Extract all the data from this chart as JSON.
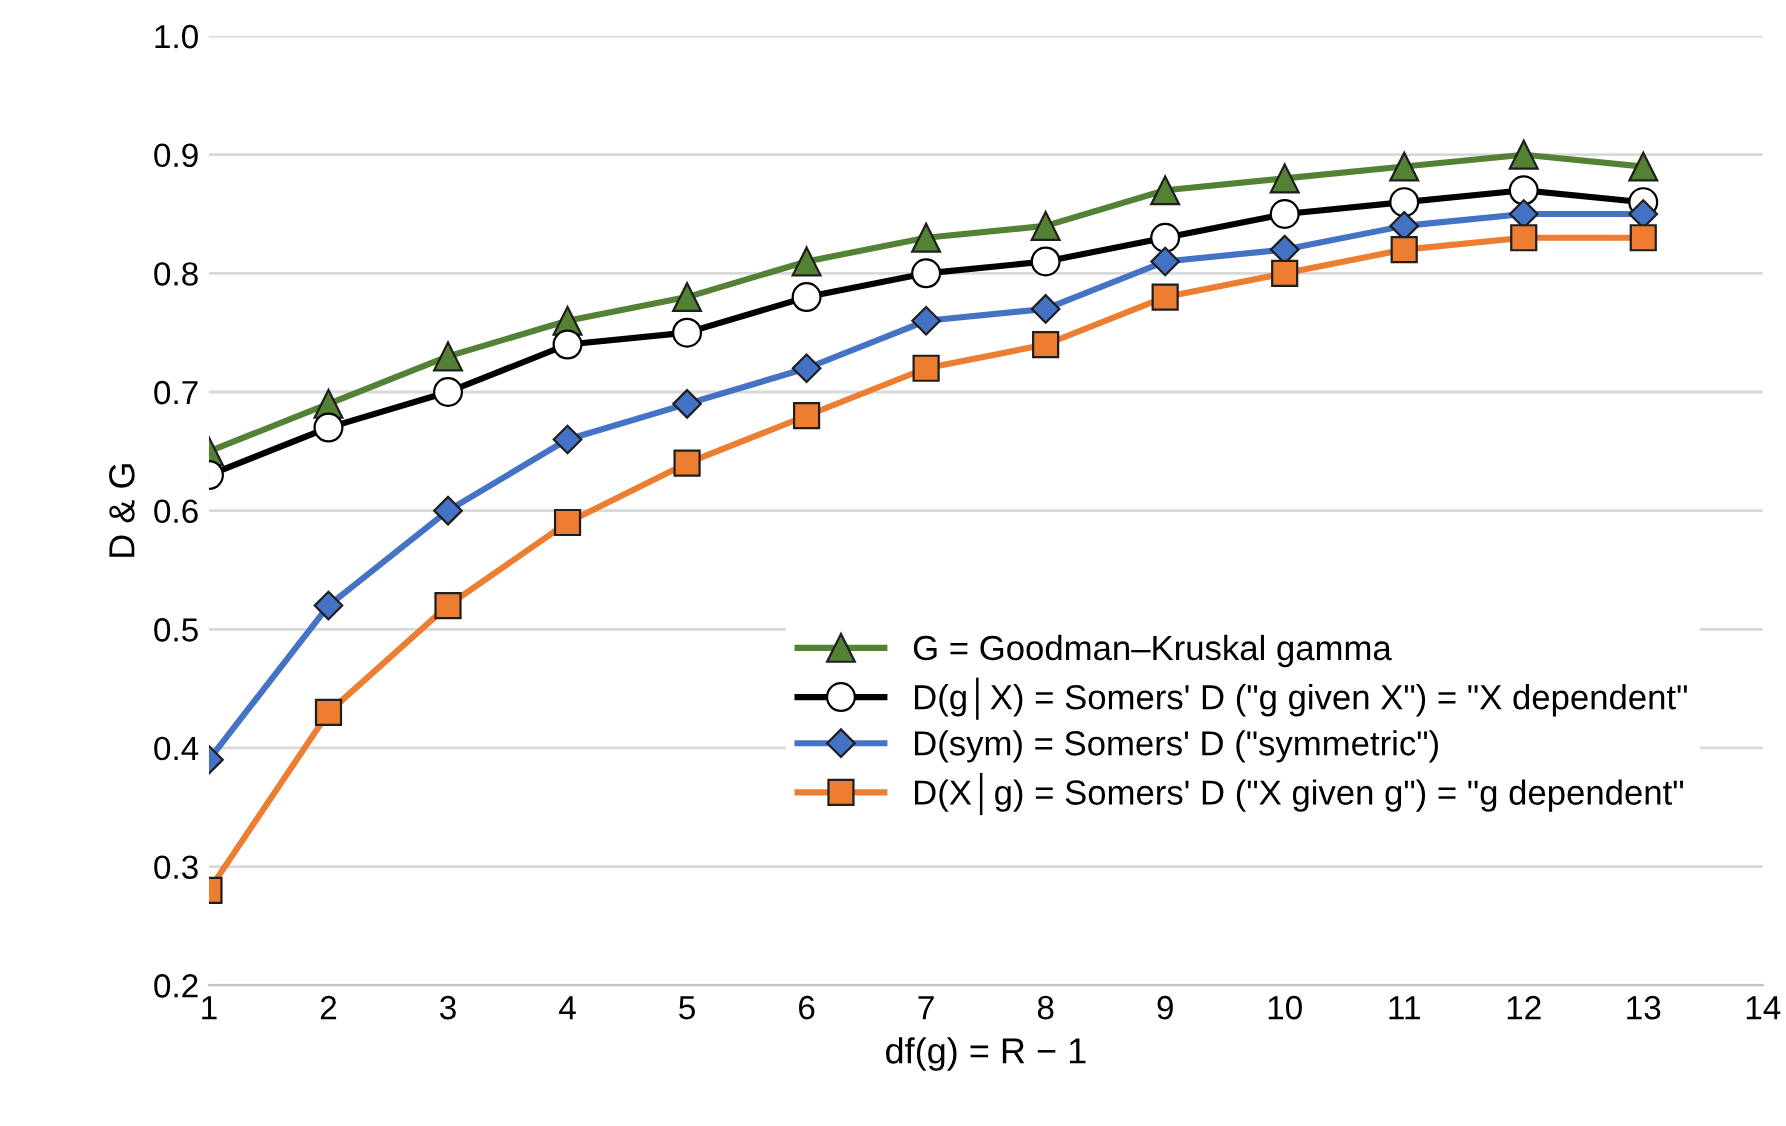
{
  "chart_data": {
    "type": "line",
    "xlabel": "df(g) = R − 1",
    "ylabel": "D & G",
    "x": [
      1,
      2,
      3,
      4,
      5,
      6,
      7,
      8,
      9,
      10,
      11,
      12,
      13
    ],
    "series": [
      {
        "name": "G = Goodman–Kruskal gamma",
        "color": "#548235",
        "marker": "triangle",
        "values": [
          0.65,
          0.69,
          0.73,
          0.76,
          0.78,
          0.81,
          0.83,
          0.84,
          0.87,
          0.88,
          0.89,
          0.9,
          0.89
        ]
      },
      {
        "name": "D(g│X) = Somers' D (\"g given X\") = \"X dependent\"",
        "color": "#000000",
        "marker": "circle",
        "values": [
          0.63,
          0.67,
          0.7,
          0.74,
          0.75,
          0.78,
          0.8,
          0.81,
          0.83,
          0.85,
          0.86,
          0.87,
          0.86
        ]
      },
      {
        "name": "D(sym) = Somers' D (\"symmetric\")",
        "color": "#4472c4",
        "marker": "diamond",
        "values": [
          0.39,
          0.52,
          0.6,
          0.66,
          0.69,
          0.72,
          0.76,
          0.77,
          0.81,
          0.82,
          0.84,
          0.85,
          0.85
        ]
      },
      {
        "name": "D(X│g) = Somers' D (\"X given g\") = \"g dependent\"",
        "color": "#ed7d31",
        "marker": "square",
        "values": [
          0.28,
          0.43,
          0.52,
          0.59,
          0.64,
          0.68,
          0.72,
          0.74,
          0.78,
          0.8,
          0.82,
          0.83,
          0.83
        ]
      }
    ],
    "xlim": [
      1,
      14
    ],
    "xticks": [
      1,
      2,
      3,
      4,
      5,
      6,
      7,
      8,
      9,
      10,
      11,
      12,
      13,
      14
    ],
    "ylim": [
      0.2,
      1.0
    ],
    "yticks": [
      {
        "value": 0.2,
        "label": "0.2"
      },
      {
        "value": 0.3,
        "label": "0.3"
      },
      {
        "value": 0.4,
        "label": "0.4"
      },
      {
        "value": 0.5,
        "label": "0.5"
      },
      {
        "value": 0.6,
        "label": "0.6"
      },
      {
        "value": 0.7,
        "label": "0.7"
      },
      {
        "value": 0.8,
        "label": "0.8"
      },
      {
        "value": 0.9,
        "label": "0.9"
      },
      {
        "value": 1.0,
        "label": "1.0"
      }
    ],
    "grid": "y",
    "legend": "lower right",
    "line_style": "solid"
  }
}
